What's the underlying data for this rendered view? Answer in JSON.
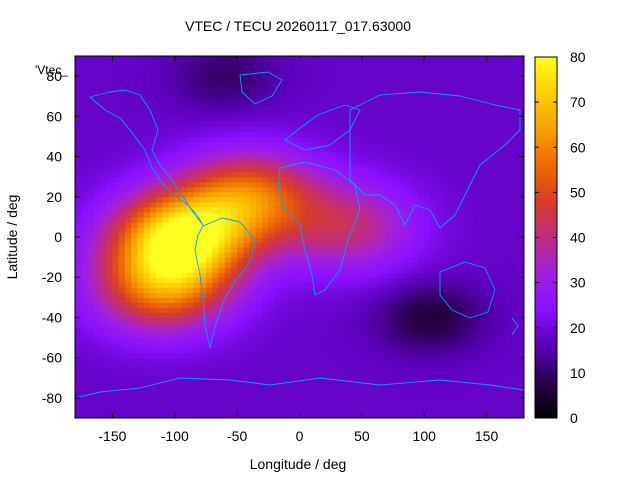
{
  "chart_data": {
    "type": "heatmap",
    "title": "VTEC / TECU 20260117_017.63000",
    "xlabel": "Longitude / deg",
    "ylabel": "Latitude / deg",
    "xlim": [
      -180,
      180
    ],
    "ylim": [
      -90,
      90
    ],
    "x_ticks": [
      -150,
      -100,
      -50,
      0,
      50,
      100,
      150
    ],
    "y_ticks": [
      -80,
      -60,
      -40,
      -20,
      0,
      20,
      40,
      60,
      80
    ],
    "colorbar": {
      "min": 0,
      "max": 80,
      "ticks": [
        0,
        10,
        20,
        30,
        40,
        50,
        60,
        70,
        80
      ],
      "palette": [
        "#000000",
        "#2a004e",
        "#5a00b8",
        "#8a10ff",
        "#a020e0",
        "#c02c80",
        "#d83c28",
        "#ee6a00",
        "#f8a000",
        "#fcd000",
        "#ffff20"
      ]
    },
    "series_label": "'Vtec_",
    "background_level": 18,
    "features": [
      {
        "name": "equatorial anomaly crest over South America",
        "lon": -95,
        "lat": 0,
        "peak_value": 75
      },
      {
        "name": "northern anomaly crest over Atlantic",
        "lon": -40,
        "lat": 20,
        "peak_value": 55
      },
      {
        "name": "southern anomaly crest",
        "lon": -110,
        "lat": -25,
        "peak_value": 55
      },
      {
        "name": "enhancement tail toward Africa / Arabia",
        "lon": 40,
        "lat": 5,
        "peak_value": 40
      },
      {
        "name": "minimum south of Australia",
        "lon": 105,
        "lat": -40,
        "peak_value": 6
      },
      {
        "name": "low near northern high latitudes",
        "lon": -60,
        "lat": 80,
        "peak_value": 10
      }
    ],
    "overlay": "coastlines",
    "coastline_color": "#00a0ff"
  }
}
